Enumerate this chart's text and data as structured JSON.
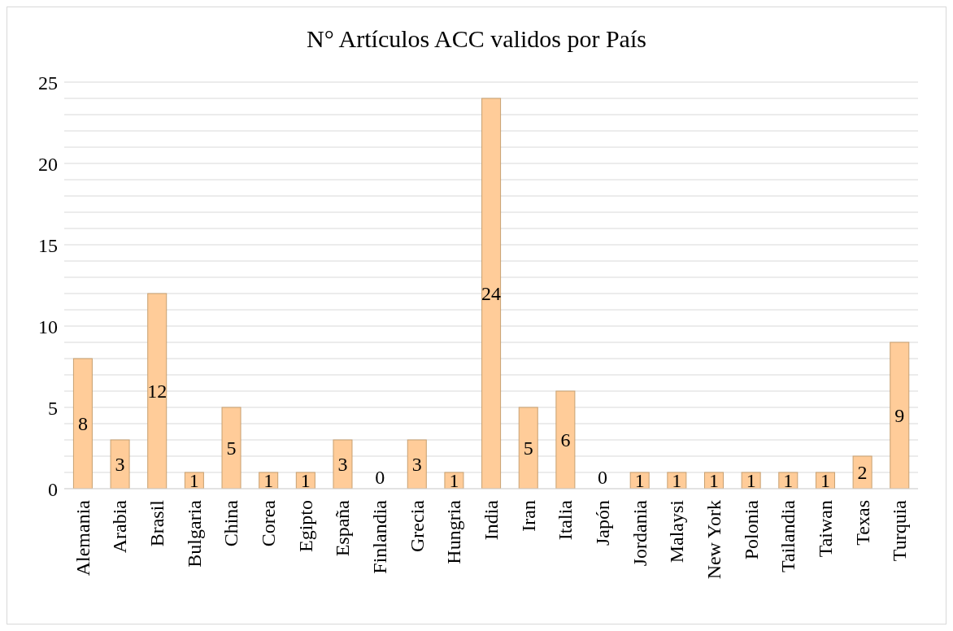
{
  "chart_data": {
    "type": "bar",
    "title": "N° Artículos ACC validos por País",
    "categories": [
      "Alemania",
      "Arabia",
      "Brasil",
      "Bulgaria",
      "China",
      "Corea",
      "Egipto",
      "España",
      "Finlandia",
      "Grecia",
      "Hungria",
      "India",
      "Iran",
      "Italia",
      "Japón",
      "Jordania",
      "Malaysi",
      "New York",
      "Polonia",
      "Tailandia",
      "Taiwan",
      "Texas",
      "Turquia"
    ],
    "values": [
      8,
      3,
      12,
      1,
      5,
      1,
      1,
      3,
      0,
      3,
      1,
      24,
      5,
      6,
      0,
      1,
      1,
      1,
      1,
      1,
      1,
      2,
      9
    ],
    "color": "#ffcc99",
    "ylim": [
      0,
      25
    ],
    "yticks": [
      0,
      {
        "value": 1,
        "label": null
      },
      {
        "value": 2,
        "label": null
      },
      {
        "value": 3,
        "label": null
      },
      {
        "value": 4,
        "label": null
      },
      5,
      {
        "value": 6,
        "label": null
      },
      {
        "value": 7,
        "label": null
      },
      {
        "value": 8,
        "label": null
      },
      {
        "value": 9,
        "label": null
      },
      10,
      {
        "value": 11,
        "label": null
      },
      {
        "value": 12,
        "label": null
      },
      {
        "value": 13,
        "label": null
      },
      {
        "value": 14,
        "label": null
      },
      15,
      {
        "value": 16,
        "label": null
      },
      {
        "value": 17,
        "label": null
      },
      {
        "value": 18,
        "label": null
      },
      {
        "value": 19,
        "label": null
      },
      20,
      {
        "value": 21,
        "label": null
      },
      {
        "value": 22,
        "label": null
      },
      {
        "value": 23,
        "label": null
      },
      {
        "value": 24,
        "label": null
      },
      25
    ],
    "grid": "y",
    "data_labels": true
  }
}
